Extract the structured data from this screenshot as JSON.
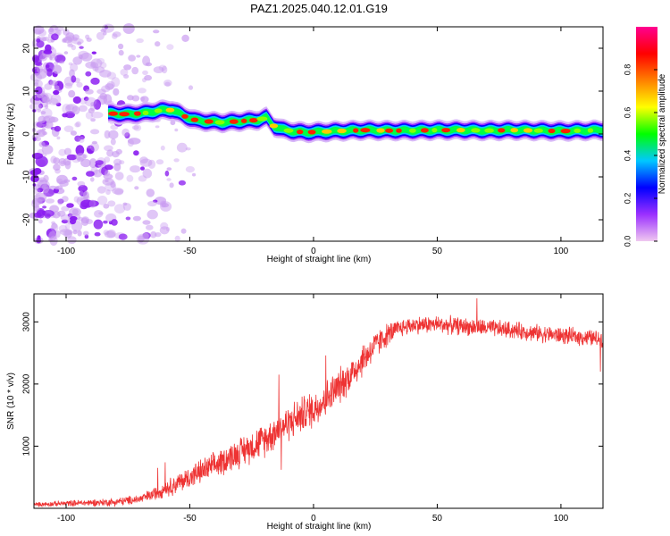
{
  "title": "PAZ1.2025.040.12.01.G19",
  "chart_data": [
    {
      "type": "heatmap",
      "xlabel": "Height of straight line (km)",
      "ylabel": "Frequency (Hz)",
      "xlim": [
        -113,
        117
      ],
      "ylim": [
        -25,
        25
      ],
      "x_ticks": [
        -100,
        -50,
        0,
        50,
        100
      ],
      "y_ticks": [
        -20,
        -10,
        0,
        10,
        20
      ],
      "grid": false,
      "colorbar": {
        "label": "Normalized spectral amplitude",
        "range": [
          0,
          1
        ],
        "ticks": [
          "0.0",
          "0.2",
          "0.4",
          "0.6",
          "0.8"
        ],
        "colormap": [
          "#f0c8f0",
          "#9b30ff",
          "#0000ff",
          "#00c8ff",
          "#00ff00",
          "#ffff00",
          "#ff8000",
          "#ff0000",
          "#ff0090"
        ]
      },
      "ridge": {
        "x": [
          -83,
          -75,
          -68,
          -62,
          -57,
          -52,
          -47,
          -42,
          -37,
          -32,
          -27,
          -22,
          -19,
          -16,
          -13,
          -8,
          -3,
          2,
          10,
          20,
          30,
          40,
          50,
          60,
          70,
          80,
          90,
          100,
          110,
          117
        ],
        "y": [
          4.8,
          4.6,
          4.9,
          5.5,
          5.6,
          4.1,
          3.1,
          2.9,
          2.7,
          2.9,
          3.1,
          3.3,
          3.9,
          1.8,
          1.1,
          0.6,
          0.4,
          0.5,
          0.7,
          0.9,
          0.8,
          0.8,
          0.9,
          0.9,
          0.8,
          0.9,
          0.8,
          0.7,
          0.8,
          0.9
        ]
      },
      "noise_region_x": [
        -113,
        -52
      ]
    },
    {
      "type": "line",
      "xlabel": "Height of straight line (km)",
      "ylabel": "SNR (10 * v/v)",
      "xlim": [
        -113,
        117
      ],
      "ylim": [
        0,
        3450
      ],
      "x_ticks": [
        -100,
        -50,
        0,
        50,
        100
      ],
      "y_ticks": [
        1000,
        2000,
        3000
      ],
      "grid": false,
      "color": "#ee3333",
      "trend": {
        "x": [
          -113,
          -100,
          -80,
          -70,
          -65,
          -60,
          -55,
          -50,
          -45,
          -40,
          -35,
          -30,
          -25,
          -20,
          -15,
          -10,
          -5,
          0,
          5,
          10,
          15,
          20,
          25,
          30,
          35,
          40,
          50,
          60,
          70,
          80,
          90,
          100,
          110,
          117
        ],
        "y": [
          60,
          80,
          100,
          150,
          220,
          320,
          400,
          500,
          600,
          680,
          800,
          900,
          1000,
          1100,
          1250,
          1380,
          1500,
          1600,
          1760,
          1950,
          2150,
          2400,
          2620,
          2800,
          2900,
          2950,
          2960,
          2930,
          2900,
          2870,
          2820,
          2780,
          2750,
          2720
        ]
      },
      "noise_amplitude": {
        "x": [
          -113,
          -70,
          -50,
          -20,
          0,
          20,
          35,
          117
        ],
        "y": [
          40,
          90,
          220,
          320,
          360,
          320,
          170,
          160
        ]
      },
      "spikes": [
        {
          "x": -63,
          "y": 650
        },
        {
          "x": -60,
          "y": 740
        },
        {
          "x": -57,
          "y": 200
        },
        {
          "x": -14,
          "y": 2150
        },
        {
          "x": -13,
          "y": 620
        },
        {
          "x": 5,
          "y": 2460
        },
        {
          "x": 66,
          "y": 3380
        },
        {
          "x": 116,
          "y": 2200
        }
      ]
    }
  ]
}
